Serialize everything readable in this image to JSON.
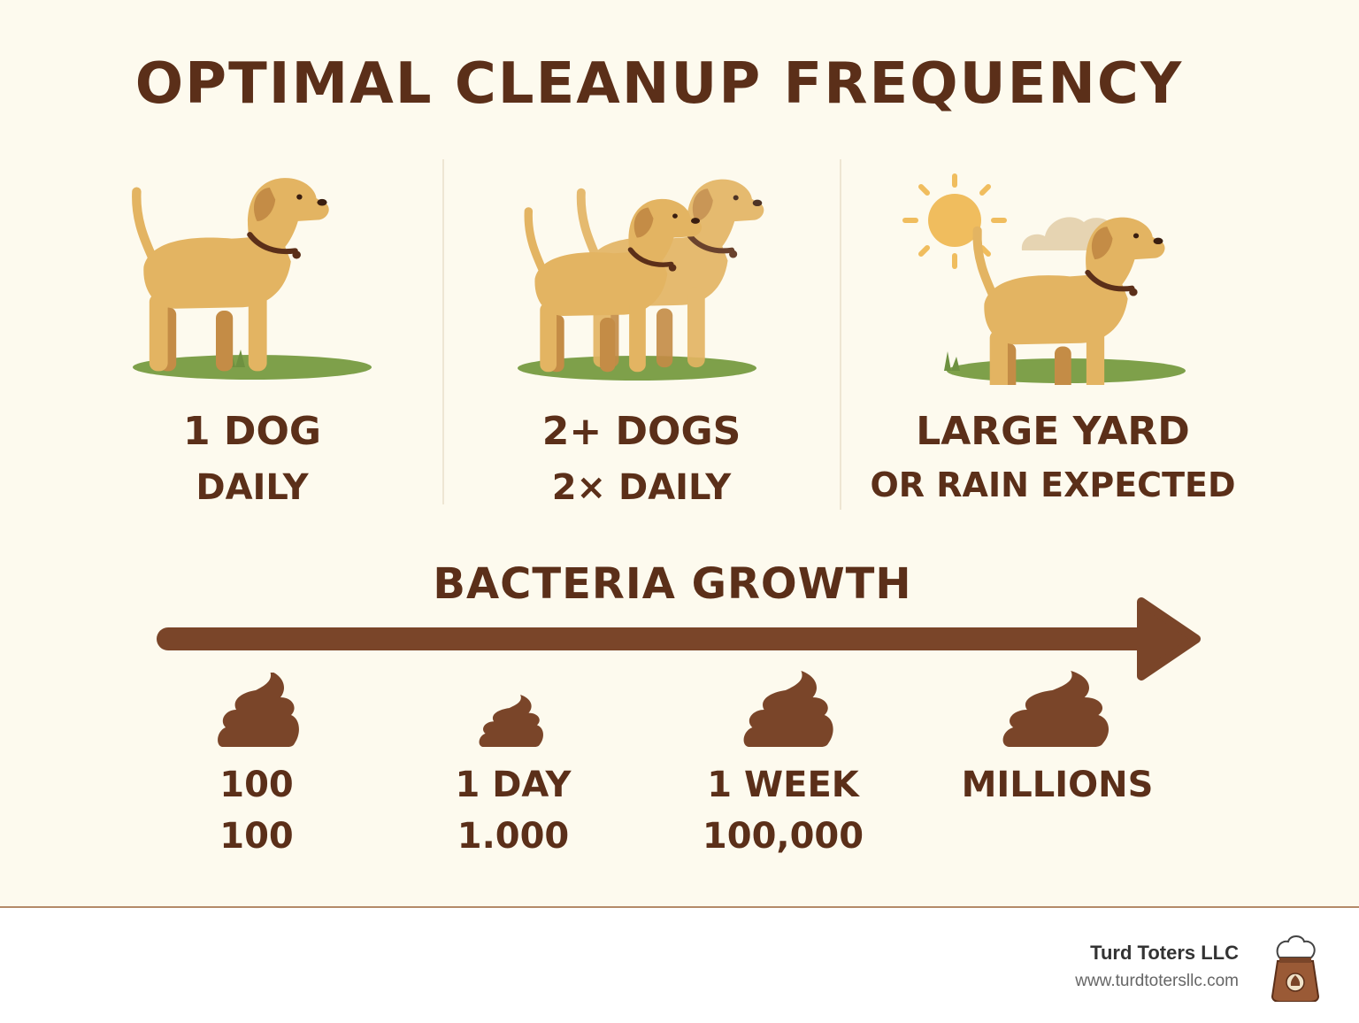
{
  "title": "OPTIMAL CLEANUP FREQUENCY",
  "columns": [
    {
      "line1": "1 DOG",
      "line2": "DAILY",
      "icon": "dog-icon"
    },
    {
      "line1": "2+ DOGS",
      "line2": "2× DAILY",
      "icon": "two-dogs-icon"
    },
    {
      "line1": "LARGE YARD",
      "line2": "OR RAIN EXPECTED",
      "icon": "dog-sun-cloud-icon"
    }
  ],
  "bacteria": {
    "title": "BACTERIA GROWTH",
    "stages": [
      {
        "line1": "100",
        "line2": "100"
      },
      {
        "line1": "1 DAY",
        "line2": "1.000"
      },
      {
        "line1": "1 WEEK",
        "line2": "100,000"
      },
      {
        "line1": "MILLIONS",
        "line2": ""
      }
    ]
  },
  "footer": {
    "brand": "Turd Toters LLC",
    "url": "www.turdtotersllc.com"
  },
  "colors": {
    "background": "#fdfaee",
    "text": "#5b2f19",
    "dog": "#e3b462",
    "poop": "#7a4529",
    "grass": "#7ea04a",
    "sun": "#f0bd5e"
  }
}
